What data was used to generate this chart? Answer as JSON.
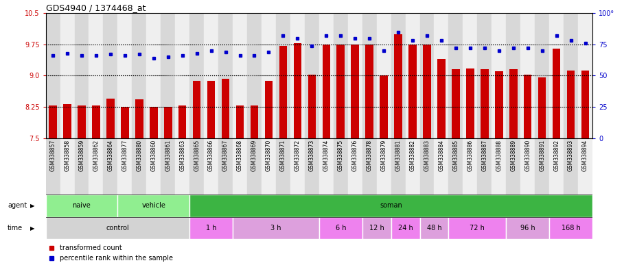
{
  "title": "GDS4940 / 1374468_at",
  "samples": [
    "GSM338857",
    "GSM338858",
    "GSM338859",
    "GSM338862",
    "GSM338864",
    "GSM338877",
    "GSM338880",
    "GSM338860",
    "GSM338861",
    "GSM338863",
    "GSM338865",
    "GSM338866",
    "GSM338867",
    "GSM338868",
    "GSM338869",
    "GSM338870",
    "GSM338871",
    "GSM338872",
    "GSM338873",
    "GSM338874",
    "GSM338875",
    "GSM338876",
    "GSM338878",
    "GSM338879",
    "GSM338881",
    "GSM338882",
    "GSM338883",
    "GSM338884",
    "GSM338885",
    "GSM338886",
    "GSM338887",
    "GSM338888",
    "GSM338889",
    "GSM338890",
    "GSM338891",
    "GSM338892",
    "GSM338893",
    "GSM338894"
  ],
  "bar_values": [
    8.28,
    8.32,
    8.28,
    8.28,
    8.45,
    8.25,
    8.43,
    8.25,
    8.25,
    8.28,
    8.88,
    8.88,
    8.92,
    8.28,
    8.28,
    8.88,
    9.72,
    9.78,
    9.02,
    9.74,
    9.74,
    9.74,
    9.74,
    9.0,
    10.0,
    9.74,
    9.74,
    9.4,
    9.15,
    9.17,
    9.15,
    9.1,
    9.15,
    9.02,
    8.95,
    9.65,
    9.12,
    9.12
  ],
  "dot_values": [
    66,
    68,
    66,
    66,
    67,
    66,
    67,
    64,
    65,
    66,
    68,
    70,
    69,
    66,
    66,
    69,
    82,
    80,
    74,
    82,
    82,
    80,
    80,
    70,
    85,
    78,
    82,
    78,
    72,
    72,
    72,
    70,
    72,
    72,
    70,
    82,
    78,
    76
  ],
  "ylim_left": [
    7.5,
    10.5
  ],
  "ylim_right": [
    0,
    100
  ],
  "yticks_left": [
    7.5,
    8.25,
    9.0,
    9.75,
    10.5
  ],
  "yticks_right": [
    0,
    25,
    50,
    75,
    100
  ],
  "bar_color": "#CC0000",
  "dot_color": "#0000CC",
  "bar_bottom": 7.5,
  "hlines": [
    8.25,
    9.0,
    9.75
  ],
  "agent_groups": [
    {
      "label": "naive",
      "start": 0,
      "end": 4,
      "color": "#90EE90"
    },
    {
      "label": "vehicle",
      "start": 5,
      "end": 9,
      "color": "#90EE90"
    },
    {
      "label": "soman",
      "start": 10,
      "end": 37,
      "color": "#3CB443"
    }
  ],
  "time_groups": [
    {
      "label": "control",
      "start": 0,
      "end": 9,
      "color": "#D3D3D3"
    },
    {
      "label": "1 h",
      "start": 10,
      "end": 12,
      "color": "#EE82EE"
    },
    {
      "label": "3 h",
      "start": 13,
      "end": 18,
      "color": "#DDA0DD"
    },
    {
      "label": "6 h",
      "start": 19,
      "end": 21,
      "color": "#EE82EE"
    },
    {
      "label": "12 h",
      "start": 22,
      "end": 23,
      "color": "#DDA0DD"
    },
    {
      "label": "24 h",
      "start": 24,
      "end": 25,
      "color": "#EE82EE"
    },
    {
      "label": "48 h",
      "start": 26,
      "end": 27,
      "color": "#DDA0DD"
    },
    {
      "label": "72 h",
      "start": 28,
      "end": 31,
      "color": "#EE82EE"
    },
    {
      "label": "96 h",
      "start": 32,
      "end": 34,
      "color": "#DDA0DD"
    },
    {
      "label": "168 h",
      "start": 35,
      "end": 37,
      "color": "#EE82EE"
    }
  ],
  "legend_items": [
    {
      "label": "transformed count",
      "color": "#CC0000"
    },
    {
      "label": "percentile rank within the sample",
      "color": "#0000CC"
    }
  ],
  "tick_stripe_colors": [
    "#D8D8D8",
    "#EFEFEF"
  ]
}
